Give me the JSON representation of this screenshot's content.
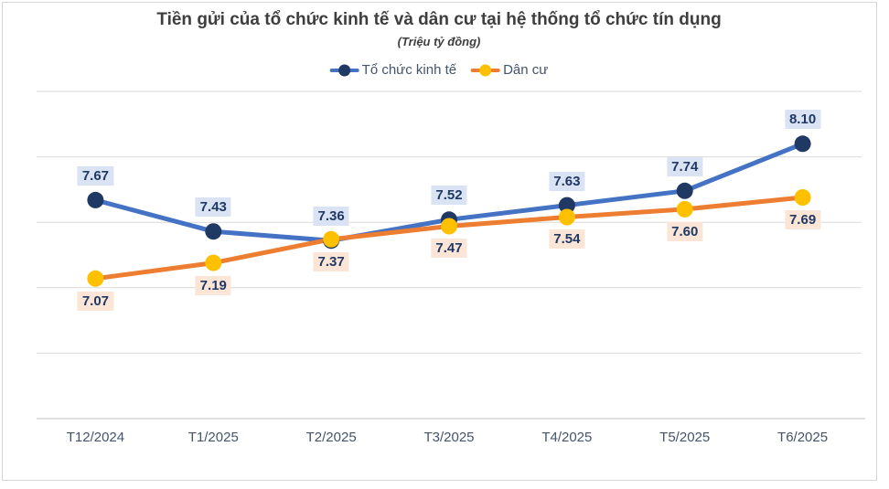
{
  "title": "Tiền gửi của tổ chức kinh tế và dân cư tại hệ thống tổ chức tín dụng",
  "subtitle": "(Triệu tỷ đồng)",
  "chart_data": {
    "type": "line",
    "title": "Tiền gửi của tổ chức kinh tế và dân cư tại hệ thống tổ chức tín dụng",
    "subtitle": "(Triệu tỷ đồng)",
    "unit": "Triệu tỷ đồng",
    "categories": [
      "T12/2024",
      "T1/2025",
      "T2/2025",
      "T3/2025",
      "T4/2025",
      "T5/2025",
      "T6/2025"
    ],
    "series": [
      {
        "name": "Tổ chức kinh tế",
        "values": [
          7.67,
          7.43,
          7.36,
          7.52,
          7.63,
          7.74,
          8.1
        ],
        "line_color": "#4472C4",
        "marker_color": "#1F3864",
        "label_bg": "#DAE3F3",
        "label_color": "#1F3864",
        "label_position": "above"
      },
      {
        "name": "Dân cư",
        "values": [
          7.07,
          7.19,
          7.37,
          7.47,
          7.54,
          7.6,
          7.69
        ],
        "line_color": "#ED7D31",
        "marker_color": "#FFC000",
        "label_bg": "#FBE5D6",
        "label_color": "#1F3864",
        "label_position": "below"
      }
    ],
    "ylim": [
      6.0,
      8.5
    ],
    "grid_step": 0.5,
    "grid": true,
    "y_axis_labels_visible": false,
    "legend_position": "top",
    "grid_color": "#D9D9D9",
    "axis_color": "#BFBFBF",
    "tick_color": "#44546A",
    "value_decimals": 2
  }
}
